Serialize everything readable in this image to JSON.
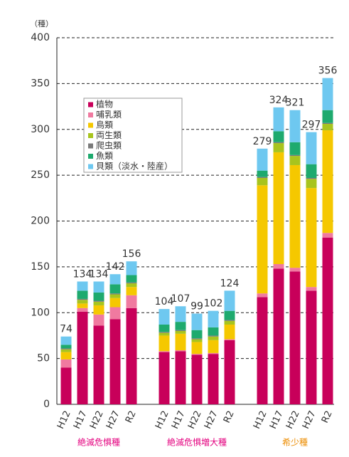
{
  "chart_data": {
    "type": "stacked_bar",
    "ylabel": "（種）",
    "categories": [
      "H12",
      "H17",
      "H22",
      "H27",
      "R2",
      "H12",
      "H17",
      "H22",
      "H27",
      "R2",
      "H12",
      "H17",
      "H22",
      "H27",
      "R2"
    ],
    "groups": [
      "絶滅危惧種",
      "絶滅危惧増大種",
      "希少種"
    ],
    "group_colors": [
      "#e4007f",
      "#e4007f",
      "#ec8c00"
    ],
    "series": [
      {
        "name": "植物",
        "color": "#c8005a",
        "values": [
          40,
          101,
          86,
          93,
          105,
          57,
          58,
          54,
          55,
          70,
          117,
          148,
          145,
          124,
          182
        ]
      },
      {
        "name": "哺乳類",
        "color": "#f07aa0",
        "values": [
          9,
          4,
          12,
          13,
          14,
          1,
          1,
          1,
          1,
          1,
          4,
          5,
          4,
          4,
          5
        ]
      },
      {
        "name": "鳥類",
        "color": "#f5c800",
        "values": [
          8,
          5,
          10,
          10,
          9,
          17,
          18,
          13,
          14,
          16,
          118,
          122,
          112,
          108,
          112
        ]
      },
      {
        "name": "両生類",
        "color": "#a8c41e",
        "values": [
          3,
          4,
          4,
          4,
          4,
          3,
          3,
          3,
          4,
          4,
          8,
          10,
          10,
          10,
          7
        ]
      },
      {
        "name": "爬虫類",
        "color": "#7a7a7a",
        "values": [
          1,
          1,
          1,
          1,
          1,
          1,
          1,
          1,
          1,
          1,
          1,
          1,
          1,
          1,
          1
        ]
      },
      {
        "name": "魚類",
        "color": "#1eaa6e",
        "values": [
          4,
          9,
          9,
          10,
          8,
          8,
          9,
          9,
          9,
          10,
          7,
          12,
          14,
          15,
          14
        ]
      },
      {
        "name": "貝類（淡水・陸産）",
        "color": "#6ec8f0",
        "values": [
          9,
          10,
          12,
          11,
          15,
          17,
          17,
          18,
          18,
          22,
          24,
          26,
          35,
          35,
          35
        ]
      }
    ],
    "totals": [
      74,
      134,
      134,
      142,
      156,
      104,
      107,
      99,
      102,
      124,
      279,
      324,
      321,
      297,
      356
    ],
    "ylim": [
      0,
      400
    ],
    "yticks": [
      0,
      50,
      100,
      150,
      200,
      250,
      300,
      350,
      400
    ],
    "grid": true
  }
}
